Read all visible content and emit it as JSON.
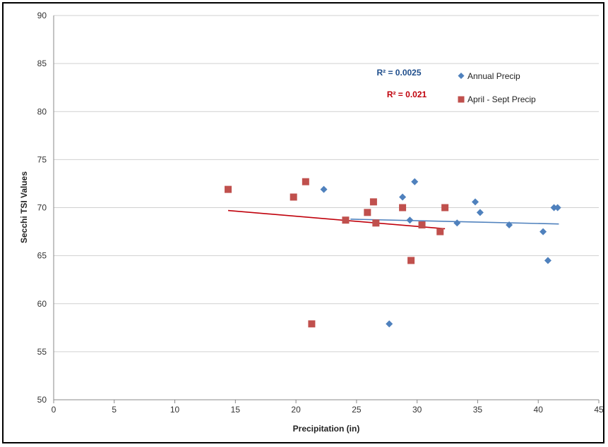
{
  "chart_data": {
    "type": "scatter",
    "title": "",
    "xlabel": "Precipitation (in)",
    "ylabel": "Secchi TSI Values",
    "xlim": [
      0,
      45
    ],
    "ylim": [
      50,
      90
    ],
    "x_ticks": [
      "0",
      "5",
      "10",
      "15",
      "20",
      "25",
      "30",
      "35",
      "40",
      "45"
    ],
    "y_ticks": [
      "50",
      "55",
      "60",
      "65",
      "70",
      "75",
      "80",
      "85",
      "90"
    ],
    "grid": "horizontal",
    "legend_position": "top-right",
    "series": [
      {
        "name": "Annual Precip",
        "marker": "diamond",
        "color": "#4f81bd",
        "r2_label": "R² = 0.0025",
        "trend": [
          [
            24.5,
            68.8
          ],
          [
            41.7,
            68.3
          ]
        ],
        "points": [
          [
            22.3,
            71.9
          ],
          [
            27.7,
            57.9
          ],
          [
            28.8,
            71.1
          ],
          [
            29.4,
            68.7
          ],
          [
            29.8,
            72.7
          ],
          [
            33.3,
            68.4
          ],
          [
            34.8,
            70.6
          ],
          [
            35.2,
            69.5
          ],
          [
            37.6,
            68.2
          ],
          [
            40.4,
            67.5
          ],
          [
            40.8,
            64.5
          ],
          [
            41.3,
            70.0
          ],
          [
            41.6,
            70.0
          ]
        ]
      },
      {
        "name": "April - Sept Precip",
        "marker": "square",
        "color": "#c0504d",
        "r2_label": "R² = 0.021",
        "trend": [
          [
            14.4,
            69.7
          ],
          [
            32.3,
            67.8
          ]
        ],
        "points": [
          [
            14.4,
            71.9
          ],
          [
            19.8,
            71.1
          ],
          [
            20.8,
            72.7
          ],
          [
            21.3,
            57.9
          ],
          [
            24.1,
            68.7
          ],
          [
            25.9,
            69.5
          ],
          [
            26.4,
            70.6
          ],
          [
            26.6,
            68.4
          ],
          [
            28.8,
            70.0
          ],
          [
            29.5,
            64.5
          ],
          [
            30.4,
            68.2
          ],
          [
            31.9,
            67.5
          ],
          [
            32.3,
            70.0
          ]
        ]
      }
    ]
  }
}
